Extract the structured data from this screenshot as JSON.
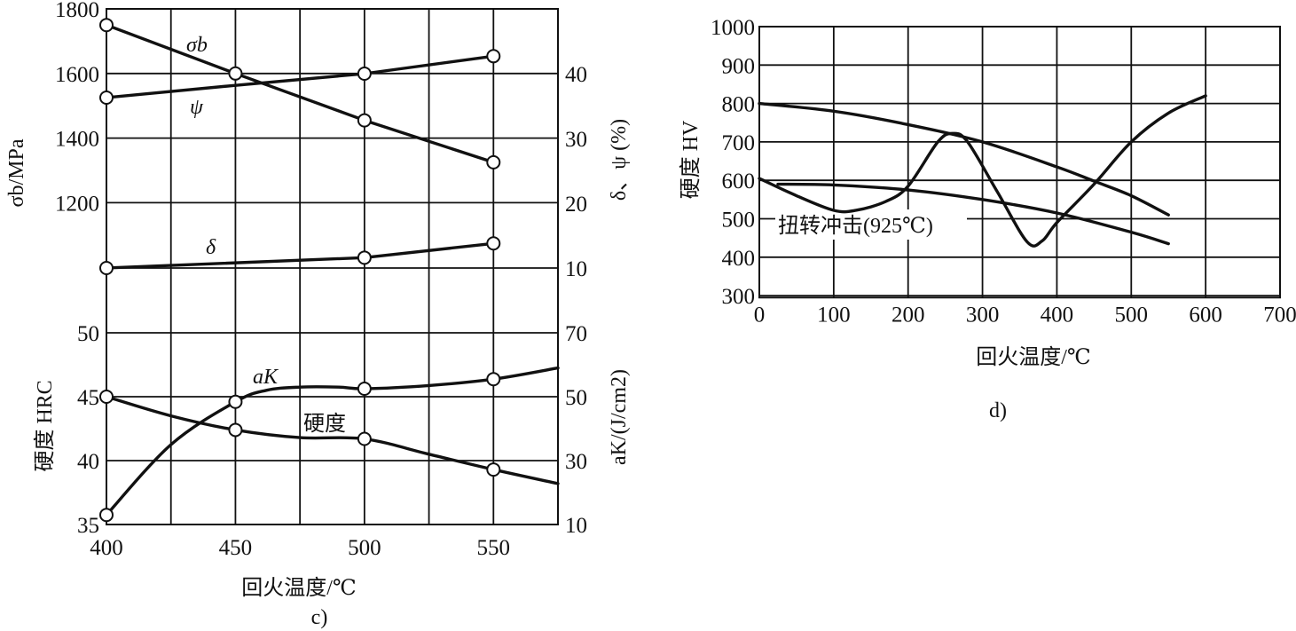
{
  "chart_data": [
    {
      "type": "line",
      "panel_label": "c)",
      "xlabel": "回火温度/℃",
      "x_ticks": [
        400,
        450,
        500,
        550
      ],
      "xlim": [
        400,
        575
      ],
      "upper": {
        "ylabel_left": "σb/MPa",
        "ylabel_right": "δ、ψ (%)",
        "left_ticks": [
          1800,
          1600,
          1400,
          1200
        ],
        "left_ylim": [
          1000,
          1800
        ],
        "right_ticks": [
          40,
          30,
          20,
          10
        ],
        "right_ylim": [
          0,
          50
        ],
        "series": [
          {
            "name": "σb",
            "axis": "left",
            "x": [
              400,
              450,
              500,
              550
            ],
            "values": [
              1750,
              1600,
              1455,
              1325
            ],
            "markers": [
              400,
              450,
              500,
              550
            ]
          },
          {
            "name": "ψ",
            "axis": "right",
            "x": [
              400,
              450,
              500,
              550
            ],
            "values": [
              36.3,
              38.2,
              40,
              42.7
            ],
            "markers": [
              400,
              500,
              550
            ]
          },
          {
            "name": "δ",
            "axis": "right",
            "x": [
              400,
              500,
              550
            ],
            "values": [
              10,
              11.6,
              13.8
            ],
            "markers": [
              400,
              500,
              550
            ]
          }
        ]
      },
      "lower": {
        "ylabel_left": "硬度 HRC",
        "ylabel_right": "aK/(J/cm2)",
        "left_ticks": [
          50,
          45,
          40,
          35
        ],
        "left_ylim": [
          35,
          50
        ],
        "right_ticks": [
          70,
          50,
          30,
          10
        ],
        "right_ylim": [
          10,
          70
        ],
        "series": [
          {
            "name": "硬度",
            "axis": "left",
            "x": [
              400,
              425,
              450,
              475,
              500,
              525,
              550,
              575
            ],
            "values": [
              45,
              43.5,
              42.4,
              41.8,
              41.7,
              40.5,
              39.3,
              38.2
            ],
            "markers": [
              400,
              450,
              500,
              550
            ]
          },
          {
            "name": "aK",
            "axis": "right",
            "x": [
              400,
              425,
              450,
              462,
              475,
              490,
              500,
              525,
              550,
              575
            ],
            "values": [
              13,
              35,
              48.4,
              52,
              53,
              53,
              52.5,
              53.5,
              55.5,
              59
            ],
            "markers": [
              400,
              450,
              500,
              550
            ]
          }
        ]
      }
    },
    {
      "type": "line",
      "panel_label": "d)",
      "xlabel": "回火温度/℃",
      "ylabel": "硬度 HV",
      "x_ticks": [
        0,
        100,
        200,
        300,
        400,
        500,
        600,
        700
      ],
      "xlim": [
        0,
        700
      ],
      "y_ticks": [
        1000,
        900,
        800,
        700,
        600,
        500,
        400,
        300
      ],
      "ylim": [
        295,
        1000
      ],
      "annotation": "扭转冲击(925℃)",
      "series": [
        {
          "name": "upper hardness curve",
          "x": [
            0,
            100,
            200,
            300,
            400,
            450,
            500,
            550
          ],
          "values": [
            800,
            780,
            745,
            700,
            635,
            598,
            560,
            510
          ]
        },
        {
          "name": "lower hardness curve",
          "x": [
            25,
            100,
            200,
            300,
            400,
            500,
            550
          ],
          "values": [
            590,
            588,
            575,
            550,
            515,
            465,
            435
          ]
        },
        {
          "name": "扭转冲击(925℃)",
          "x": [
            0,
            50,
            100,
            130,
            170,
            200,
            240,
            260,
            280,
            320,
            360,
            380,
            400,
            450,
            500,
            550,
            600
          ],
          "values": [
            605,
            560,
            522,
            522,
            545,
            585,
            700,
            722,
            700,
            570,
            440,
            442,
            490,
            590,
            700,
            775,
            820
          ]
        }
      ]
    }
  ]
}
